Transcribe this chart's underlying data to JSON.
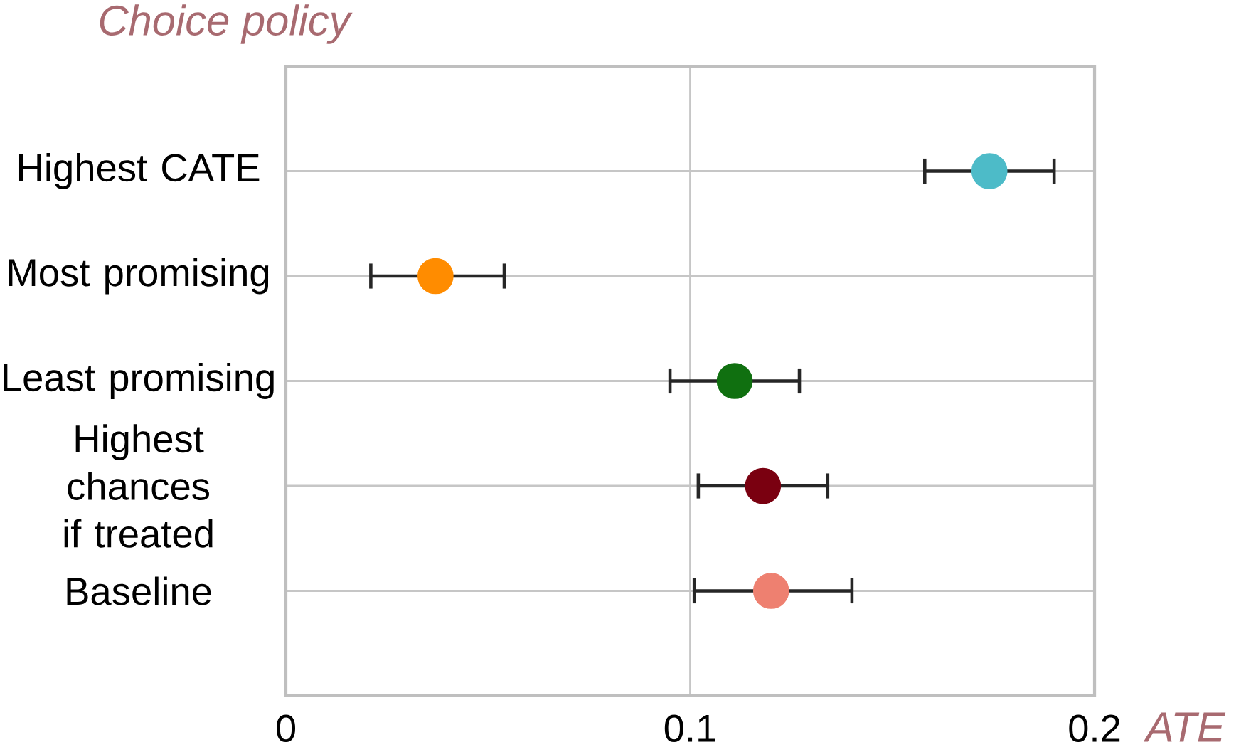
{
  "chart_data": {
    "type": "scatter",
    "orientation": "horizontal",
    "ylabel": "Choice policy",
    "xlabel": "ATE",
    "categories": [
      "Highest CATE",
      "Most promising",
      "Least promising",
      "Highest chances if treated",
      "Baseline"
    ],
    "values": [
      0.174,
      0.037,
      0.111,
      0.118,
      0.12
    ],
    "errors": [
      [
        0.158,
        0.19
      ],
      [
        0.021,
        0.054
      ],
      [
        0.095,
        0.127
      ],
      [
        0.102,
        0.134
      ],
      [
        0.101,
        0.14
      ]
    ],
    "colors": [
      "#4dbbc8",
      "#ff8c00",
      "#107010",
      "#7a0010",
      "#ee8070"
    ],
    "xlim": [
      0,
      0.2
    ],
    "xticks": [
      0,
      0.1,
      0.2
    ],
    "grid": true,
    "marker": "circle"
  }
}
